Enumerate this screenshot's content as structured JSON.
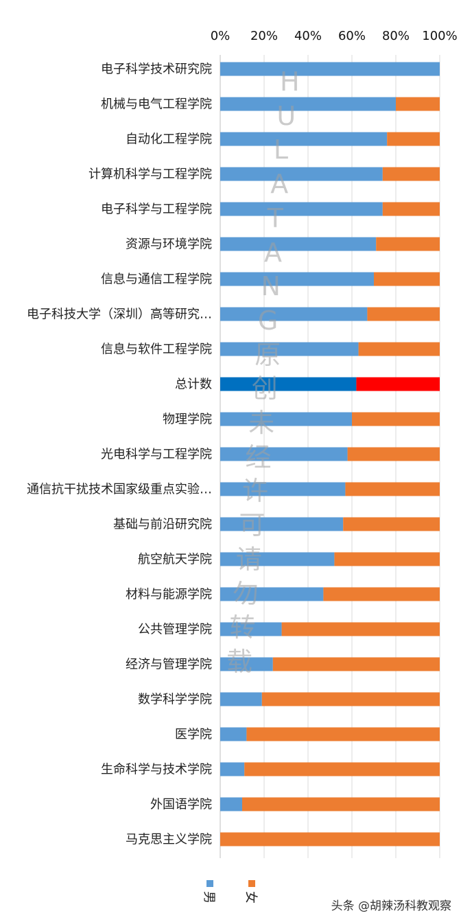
{
  "chart_data": {
    "type": "bar",
    "orientation": "horizontal",
    "stacked": "percent",
    "xlim": [
      0,
      100
    ],
    "x_ticks": [
      "0%",
      "20%",
      "40%",
      "60%",
      "80%",
      "100%"
    ],
    "grid": true,
    "legend_placement": "bottom",
    "categories": [
      "电子科学技术研究院",
      "机械与电气工程学院",
      "自动化工程学院",
      "计算机科学与工程学院",
      "电子科学与工程学院",
      "资源与环境学院",
      "信息与通信工程学院",
      "电子科技大学（深圳）高等研究…",
      "信息与软件工程学院",
      "总计数",
      "物理学院",
      "光电科学与工程学院",
      "通信抗干扰技术国家级重点实验…",
      "基础与前沿研究院",
      "航空航天学院",
      "材料与能源学院",
      "公共管理学院",
      "经济与管理学院",
      "数学科学学院",
      "医学院",
      "生命科学与技术学院",
      "外国语学院",
      "马克思主义学院"
    ],
    "highlight_category": "总计数",
    "series": [
      {
        "name": "男",
        "color": "#5B9BD5",
        "highlight_color": "#0070C0",
        "values": [
          100,
          80,
          76,
          74,
          74,
          71,
          70,
          67,
          63,
          62,
          60,
          58,
          57,
          56,
          52,
          47,
          28,
          24,
          19,
          12,
          11,
          10,
          0
        ]
      },
      {
        "name": "女",
        "color": "#ED7D31",
        "highlight_color": "#FF0000",
        "values": [
          0,
          20,
          24,
          26,
          26,
          29,
          30,
          33,
          37,
          38,
          40,
          42,
          43,
          44,
          48,
          53,
          72,
          76,
          81,
          88,
          89,
          90,
          100
        ]
      }
    ]
  },
  "watermark": {
    "chars": [
      "H",
      "U",
      "L",
      "A",
      "T",
      "A",
      "N",
      "G",
      "原",
      "创",
      "未",
      "经",
      "许",
      "可",
      "请",
      "勿",
      "转",
      "载"
    ]
  },
  "footer": {
    "text": "头条 @胡辣汤科教观察"
  }
}
